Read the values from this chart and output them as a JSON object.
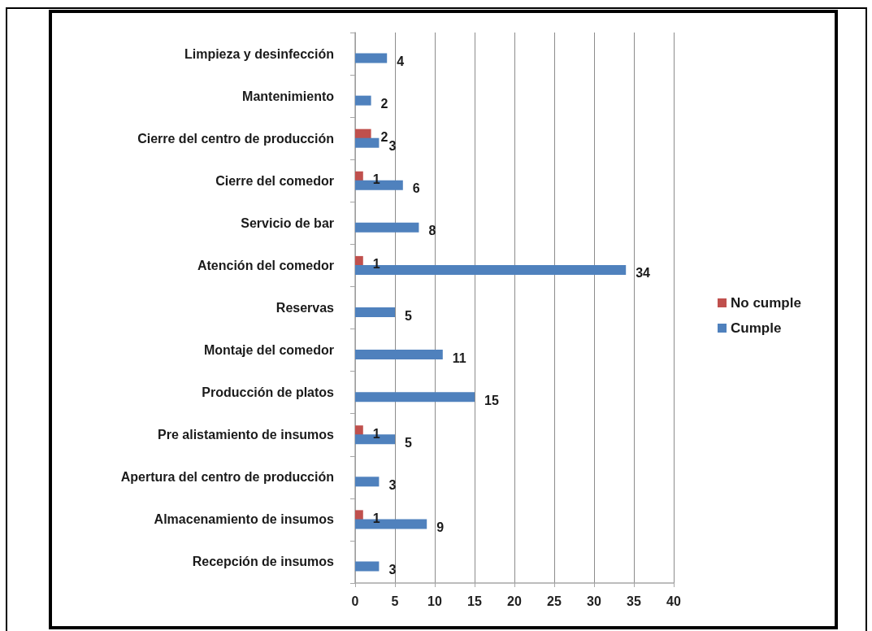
{
  "chart_data": {
    "type": "bar",
    "orientation": "horizontal",
    "categories": [
      "Limpieza y desinfección",
      "Mantenimiento",
      "Cierre del centro de producción",
      "Cierre del comedor",
      "Servicio de bar",
      "Atención del comedor",
      "Reservas",
      "Montaje del comedor",
      "Producción de platos",
      "Pre alistamiento de insumos",
      "Apertura del centro de producción",
      "Almacenamiento de insumos",
      "Recepción de insumos"
    ],
    "series": [
      {
        "name": "No cumple",
        "color": "#c0504d",
        "values": [
          null,
          null,
          2,
          1,
          null,
          1,
          null,
          null,
          null,
          1,
          null,
          1,
          null
        ]
      },
      {
        "name": "Cumple",
        "color": "#4f81bd",
        "values": [
          4,
          2,
          3,
          6,
          8,
          34,
          5,
          11,
          15,
          5,
          3,
          9,
          3
        ]
      }
    ],
    "xlim": [
      0,
      40
    ],
    "xticks": [
      0,
      5,
      10,
      15,
      20,
      25,
      30,
      35,
      40
    ],
    "grid": "x",
    "legend": "right",
    "data_labels": true
  }
}
